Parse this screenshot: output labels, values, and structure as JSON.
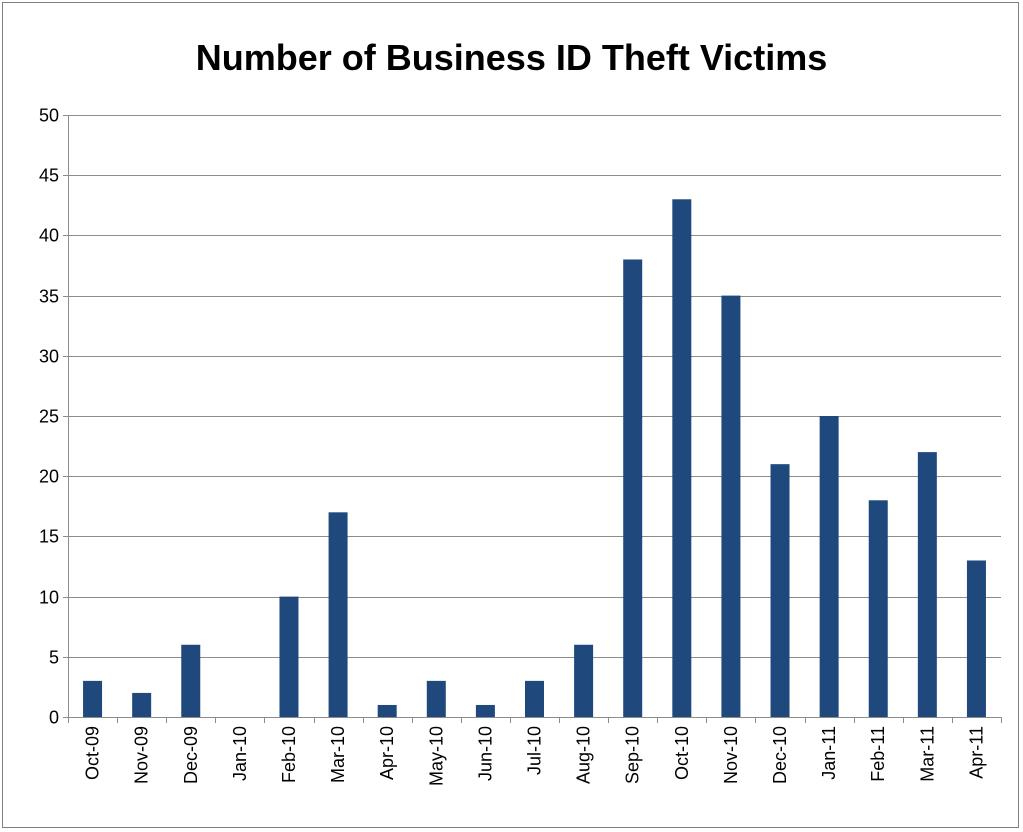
{
  "chart_data": {
    "type": "bar",
    "title": "Number of Business ID Theft Victims",
    "xlabel": "",
    "ylabel": "",
    "ylim": [
      0,
      50
    ],
    "yticks": [
      0,
      5,
      10,
      15,
      20,
      25,
      30,
      35,
      40,
      45,
      50
    ],
    "categories": [
      "Oct-09",
      "Nov-09",
      "Dec-09",
      "Jan-10",
      "Feb-10",
      "Mar-10",
      "Apr-10",
      "May-10",
      "Jun-10",
      "Jul-10",
      "Aug-10",
      "Sep-10",
      "Oct-10",
      "Nov-10",
      "Dec-10",
      "Jan-11",
      "Feb-11",
      "Mar-11",
      "Apr-11"
    ],
    "values": [
      3,
      2,
      6,
      0,
      10,
      17,
      1,
      3,
      1,
      3,
      6,
      38,
      43,
      35,
      21,
      25,
      18,
      22,
      13
    ],
    "bar_color": "#1f497d",
    "grid": true,
    "legend": "none"
  }
}
